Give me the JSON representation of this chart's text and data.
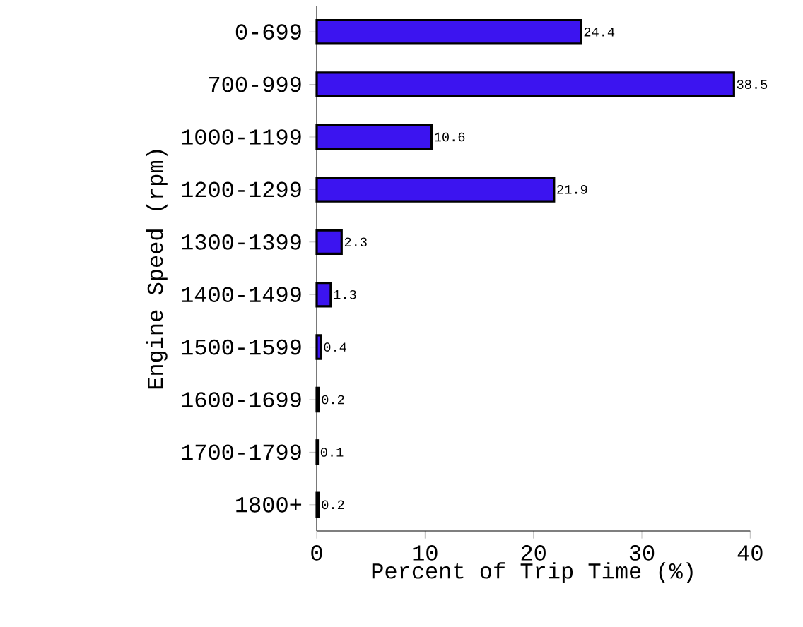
{
  "chart_data": {
    "type": "bar",
    "orientation": "horizontal",
    "ylabel": "Engine Speed (rpm)",
    "xlabel": "Percent of Trip Time (%)",
    "categories": [
      "0-699",
      "700-999",
      "1000-1199",
      "1200-1299",
      "1300-1399",
      "1400-1499",
      "1500-1599",
      "1600-1699",
      "1700-1799",
      "1800+"
    ],
    "values": [
      24.4,
      38.5,
      10.6,
      21.9,
      2.3,
      1.3,
      0.4,
      0.2,
      0.1,
      0.2
    ],
    "color": "#3c14f0",
    "xlim": [
      0,
      40
    ],
    "xticks": [
      0,
      10,
      20,
      30,
      40
    ],
    "data_labels": true
  }
}
